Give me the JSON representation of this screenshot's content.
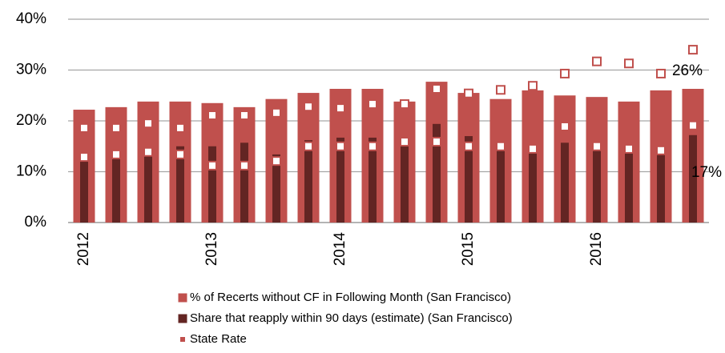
{
  "chart_data": {
    "type": "bar",
    "categories": [
      "2012",
      null,
      null,
      null,
      "2013",
      null,
      null,
      null,
      "2014",
      null,
      null,
      null,
      "2015",
      null,
      null,
      null,
      "2016",
      null,
      null,
      null
    ],
    "series": [
      {
        "name": "% of Recerts without CF in Following Month (San Francisco)",
        "color": "#c0504d",
        "kind": "bar",
        "values": [
          22.2,
          22.7,
          23.8,
          23.8,
          23.5,
          22.7,
          24.3,
          25.5,
          26.3,
          26.3,
          23.8,
          27.7,
          25.5,
          24.3,
          26,
          25,
          24.7,
          23.8,
          26,
          26.3
        ],
        "value_labels": [
          null,
          null,
          null,
          null,
          null,
          null,
          null,
          null,
          null,
          null,
          null,
          null,
          null,
          null,
          null,
          null,
          null,
          null,
          null,
          "26%"
        ]
      },
      {
        "name": "Share that reapply within 90 days (estimate) (San Francisco)",
        "color": "#632523",
        "kind": "bar",
        "values": [
          13.1,
          13.1,
          14.3,
          15,
          15,
          15.7,
          13.4,
          16.2,
          16.7,
          16.7,
          16.2,
          19.4,
          17,
          15,
          15,
          15.7,
          15,
          15,
          15,
          17.2
        ],
        "value_labels": [
          null,
          null,
          null,
          null,
          null,
          null,
          null,
          null,
          null,
          null,
          null,
          null,
          null,
          null,
          null,
          null,
          null,
          null,
          null,
          "17%"
        ]
      },
      {
        "name": "State Rate",
        "color": "#c0504d",
        "kind": "marker",
        "values": [
          18.6,
          18.6,
          19.5,
          18.6,
          21.1,
          21.1,
          21.6,
          22.8,
          22.5,
          23.3,
          23.3,
          26.3,
          25.4,
          26.1,
          26.9,
          29.3,
          31.7,
          31.3,
          29.3,
          34
        ]
      },
      {
        "color": "#c0504d",
        "kind": "marker",
        "values": [
          12.9,
          13.4,
          13.9,
          13.4,
          11.2,
          11.2,
          12.1,
          15,
          15,
          15,
          15.9,
          15.9,
          15,
          15,
          14.5,
          18.9,
          15,
          14.5,
          14.2,
          19.1
        ]
      }
    ],
    "ylim": [
      0,
      40
    ],
    "yticks": [
      {
        "value": 0,
        "label": "0%"
      },
      {
        "value": 10,
        "label": "10%"
      },
      {
        "value": 20,
        "label": "20%"
      },
      {
        "value": 30,
        "label": "30%"
      },
      {
        "value": 40,
        "label": "40%"
      }
    ],
    "grid": true
  }
}
